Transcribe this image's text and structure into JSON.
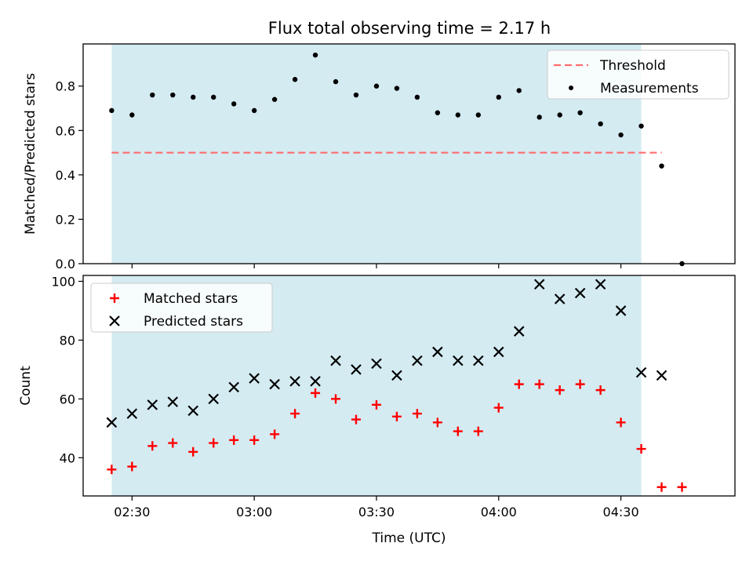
{
  "chart_data": [
    {
      "type": "scatter",
      "title": "Flux total observing time = 2.17 h",
      "ylabel": "Matched/Predicted stars",
      "xlabel": "",
      "ylim": [
        0,
        0.99
      ],
      "yticks": [
        0.0,
        0.2,
        0.4,
        0.6,
        0.8
      ],
      "ytick_labels": [
        "0.0",
        "0.2",
        "0.4",
        "0.6",
        "0.8"
      ],
      "shaded_span": [
        "02:25",
        "04:35"
      ],
      "shade_color": "#add8e6",
      "threshold": {
        "name": "Threshold",
        "value": 0.5,
        "x_start": "02:25",
        "x_end": "04:40",
        "color": "#ff6b6b",
        "style": "dashed"
      },
      "series": [
        {
          "name": "Measurements",
          "marker": "dot",
          "color": "#000000",
          "x": [
            "02:25",
            "02:30",
            "02:35",
            "02:40",
            "02:45",
            "02:50",
            "02:55",
            "03:00",
            "03:05",
            "03:10",
            "03:15",
            "03:20",
            "03:25",
            "03:30",
            "03:35",
            "03:40",
            "03:45",
            "03:50",
            "03:55",
            "04:00",
            "04:05",
            "04:10",
            "04:15",
            "04:20",
            "04:25",
            "04:30",
            "04:35",
            "04:40",
            "04:45"
          ],
          "values": [
            0.69,
            0.67,
            0.76,
            0.76,
            0.75,
            0.75,
            0.72,
            0.69,
            0.74,
            0.83,
            0.94,
            0.82,
            0.76,
            0.8,
            0.79,
            0.75,
            0.68,
            0.67,
            0.67,
            0.75,
            0.78,
            0.66,
            0.67,
            0.68,
            0.63,
            0.58,
            0.62,
            0.44,
            0.0
          ]
        }
      ],
      "legend": {
        "placement": "top-right",
        "entries": [
          "Threshold",
          "Measurements"
        ]
      },
      "grid": false
    },
    {
      "type": "scatter",
      "title": "",
      "xlabel": "Time (UTC)",
      "ylabel": "Count",
      "ylim": [
        27,
        102
      ],
      "yticks": [
        40,
        60,
        80,
        100
      ],
      "ytick_labels": [
        "40",
        "60",
        "80",
        "100"
      ],
      "xticks": [
        "02:30",
        "03:00",
        "03:30",
        "04:00",
        "04:30"
      ],
      "xtick_labels": [
        "02:30",
        "03:00",
        "03:30",
        "04:00",
        "04:30"
      ],
      "xlim": [
        "02:18",
        "04:58"
      ],
      "shaded_span": [
        "02:25",
        "04:35"
      ],
      "shade_color": "#add8e6",
      "series": [
        {
          "name": "Matched stars",
          "marker": "plus",
          "color": "#ff0000",
          "x": [
            "02:25",
            "02:30",
            "02:35",
            "02:40",
            "02:45",
            "02:50",
            "02:55",
            "03:00",
            "03:05",
            "03:10",
            "03:15",
            "03:20",
            "03:25",
            "03:30",
            "03:35",
            "03:40",
            "03:45",
            "03:50",
            "03:55",
            "04:00",
            "04:05",
            "04:10",
            "04:15",
            "04:20",
            "04:25",
            "04:30",
            "04:35",
            "04:40",
            "04:45"
          ],
          "values": [
            36,
            37,
            44,
            45,
            42,
            45,
            46,
            46,
            48,
            55,
            62,
            60,
            53,
            58,
            54,
            55,
            52,
            49,
            49,
            57,
            65,
            65,
            63,
            65,
            63,
            52,
            43,
            30,
            30
          ]
        },
        {
          "name": "Predicted stars",
          "marker": "x",
          "color": "#000000",
          "x": [
            "02:25",
            "02:30",
            "02:35",
            "02:40",
            "02:45",
            "02:50",
            "02:55",
            "03:00",
            "03:05",
            "03:10",
            "03:15",
            "03:20",
            "03:25",
            "03:30",
            "03:35",
            "03:40",
            "03:45",
            "03:50",
            "03:55",
            "04:00",
            "04:05",
            "04:10",
            "04:15",
            "04:20",
            "04:25",
            "04:30",
            "04:35",
            "04:40"
          ],
          "values": [
            52,
            55,
            58,
            59,
            56,
            60,
            64,
            67,
            65,
            66,
            66,
            73,
            70,
            72,
            68,
            73,
            76,
            73,
            73,
            76,
            83,
            99,
            94,
            96,
            99,
            90,
            69,
            68
          ]
        }
      ],
      "legend": {
        "placement": "top-left",
        "entries": [
          "Matched stars",
          "Predicted stars"
        ]
      },
      "grid": false
    }
  ]
}
